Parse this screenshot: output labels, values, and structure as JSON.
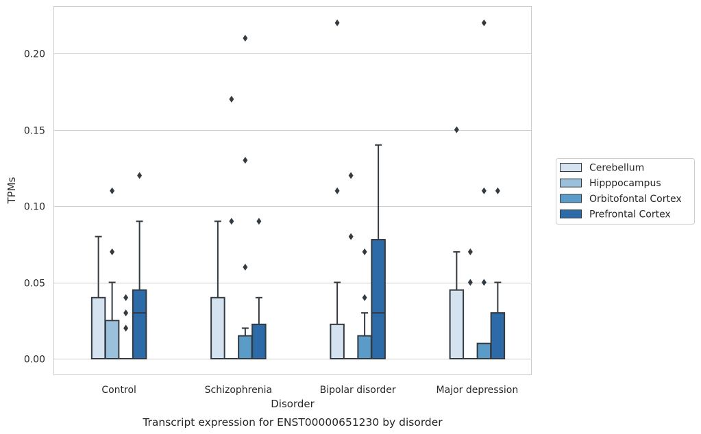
{
  "chart_data": {
    "type": "box",
    "caption": "Transcript expression for ENST00000651230 by disorder",
    "xlabel": "Disorder",
    "ylabel": "TPMs",
    "ylim": [
      -0.01,
      0.232
    ],
    "yticks": [
      "0.00",
      "0.05",
      "0.10",
      "0.15",
      "0.20"
    ],
    "ytick_values": [
      0,
      0.05,
      0.1,
      0.15,
      0.2
    ],
    "grid": true,
    "legend_position": "right",
    "categories": [
      "Control",
      "Schizophrenia",
      "Bipolar disorder",
      "Major depression"
    ],
    "series": [
      {
        "name": "Cerebellum",
        "color": "#d5e3f1",
        "boxes": [
          {
            "q1": 0,
            "median": 0,
            "q3": 0.04,
            "whisker_low": 0,
            "whisker_high": 0.08,
            "outliers": []
          },
          {
            "q1": 0,
            "median": 0,
            "q3": 0.04,
            "whisker_low": 0,
            "whisker_high": 0.09,
            "outliers": []
          },
          {
            "q1": 0,
            "median": 0,
            "q3": 0.0225,
            "whisker_low": 0,
            "whisker_high": 0.05,
            "outliers": [
              0.22,
              0.11
            ]
          },
          {
            "q1": 0,
            "median": 0,
            "q3": 0.045,
            "whisker_low": 0,
            "whisker_high": 0.07,
            "outliers": [
              0.15
            ]
          }
        ]
      },
      {
        "name": "Hipppocampus",
        "color": "#9ac0dc",
        "boxes": [
          {
            "q1": 0,
            "median": 0,
            "q3": 0.025,
            "whisker_low": 0,
            "whisker_high": 0.05,
            "outliers": [
              0.11,
              0.07
            ]
          },
          {
            "q1": 0,
            "median": 0,
            "q3": 0,
            "whisker_low": 0,
            "whisker_high": 0,
            "outliers": [
              0.17,
              0.09
            ]
          },
          {
            "q1": 0,
            "median": 0,
            "q3": 0,
            "whisker_low": 0,
            "whisker_high": 0,
            "outliers": [
              0.12,
              0.08
            ]
          },
          {
            "q1": 0,
            "median": 0,
            "q3": 0,
            "whisker_low": 0,
            "whisker_high": 0,
            "outliers": [
              0.07,
              0.05
            ]
          }
        ]
      },
      {
        "name": "Orbitofontal Cortex",
        "color": "#5a9bc8",
        "boxes": [
          {
            "q1": 0,
            "median": 0,
            "q3": 0,
            "whisker_low": 0,
            "whisker_high": 0,
            "outliers": [
              0.04,
              0.03,
              0.02
            ]
          },
          {
            "q1": 0,
            "median": 0,
            "q3": 0.015,
            "whisker_low": 0,
            "whisker_high": 0.02,
            "outliers": [
              0.21,
              0.13,
              0.06
            ]
          },
          {
            "q1": 0,
            "median": 0,
            "q3": 0.015,
            "whisker_low": 0,
            "whisker_high": 0.03,
            "outliers": [
              0.07,
              0.04
            ]
          },
          {
            "q1": 0,
            "median": 0,
            "q3": 0.01,
            "whisker_low": 0,
            "whisker_high": 0.01,
            "outliers": [
              0.22,
              0.11,
              0.05
            ]
          }
        ]
      },
      {
        "name": "Prefrontal Cortex",
        "color": "#2c6aa8",
        "boxes": [
          {
            "q1": 0,
            "median": 0.03,
            "q3": 0.045,
            "whisker_low": 0,
            "whisker_high": 0.09,
            "outliers": [
              0.12
            ]
          },
          {
            "q1": 0,
            "median": 0,
            "q3": 0.0225,
            "whisker_low": 0,
            "whisker_high": 0.04,
            "outliers": [
              0.09
            ]
          },
          {
            "q1": 0,
            "median": 0.03,
            "q3": 0.078,
            "whisker_low": 0,
            "whisker_high": 0.14,
            "outliers": []
          },
          {
            "q1": 0,
            "median": 0,
            "q3": 0.03,
            "whisker_low": 0,
            "whisker_high": 0.05,
            "outliers": [
              0.11
            ]
          }
        ]
      }
    ]
  },
  "colors": {
    "background": "#ffffff",
    "grid": "#cccccc",
    "frame": "#cccccc",
    "box_edge": "#333a40",
    "text": "#262626"
  }
}
